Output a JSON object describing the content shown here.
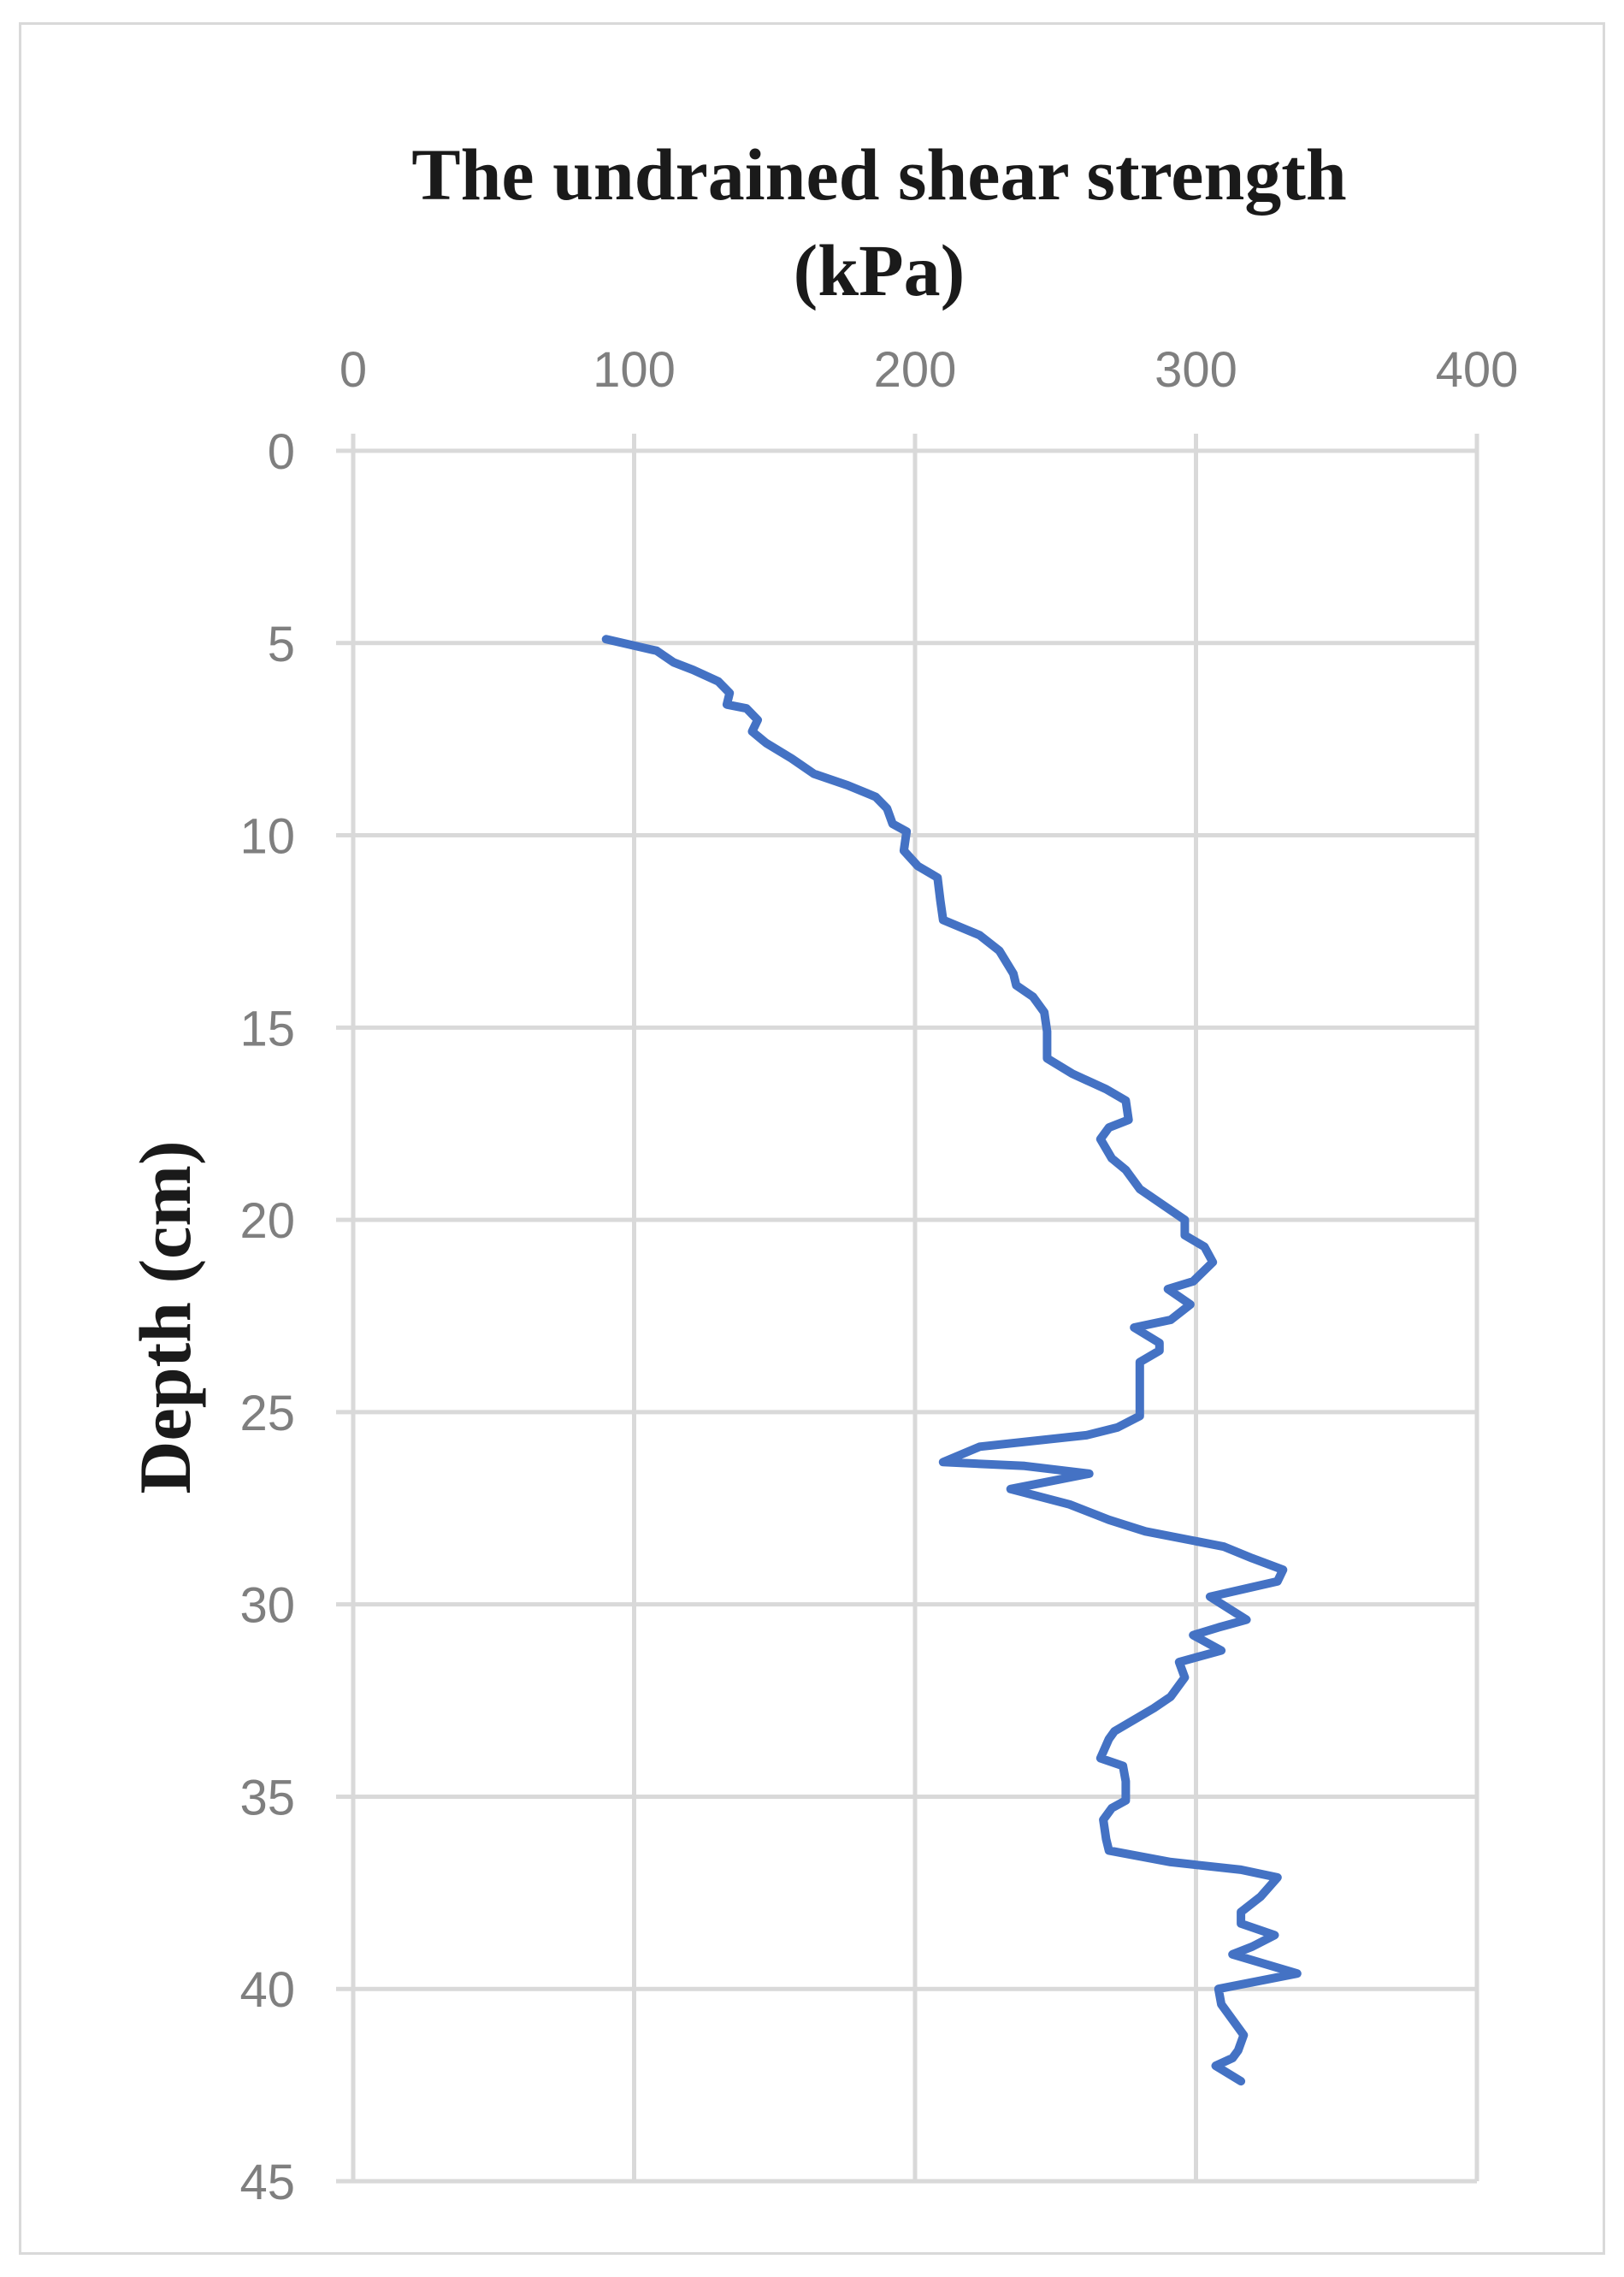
{
  "chart_data": {
    "type": "line",
    "title": "The undrained shear strength (kPa)",
    "title_lines": [
      "The undrained shear strength",
      "(kPa)"
    ],
    "xlabel": "",
    "ylabel": "Depth (cm)",
    "x_axis_position": "top",
    "y_axis_inverted": true,
    "xlim": [
      0,
      400
    ],
    "ylim": [
      0,
      45
    ],
    "x_ticks": [
      "0",
      "100",
      "200",
      "300",
      "400"
    ],
    "y_ticks": [
      "0",
      "5",
      "10",
      "15",
      "20",
      "25",
      "30",
      "35",
      "40",
      "45"
    ],
    "grid": true,
    "legend": "none",
    "colors": {
      "series": "#4472c4",
      "grid": "#d9d9d9",
      "tick_label": "#7f7f7f",
      "title": "#1a1a1a"
    },
    "series": [
      {
        "points": [
          [
            90,
            4.9
          ],
          [
            108,
            5.2
          ],
          [
            114,
            5.5
          ],
          [
            121,
            5.7
          ],
          [
            130,
            6.0
          ],
          [
            134,
            6.3
          ],
          [
            133,
            6.6
          ],
          [
            140,
            6.7
          ],
          [
            144,
            7.0
          ],
          [
            142,
            7.3
          ],
          [
            147,
            7.6
          ],
          [
            156,
            8.0
          ],
          [
            164,
            8.4
          ],
          [
            176,
            8.7
          ],
          [
            186,
            9.0
          ],
          [
            190,
            9.3
          ],
          [
            192,
            9.7
          ],
          [
            197,
            9.9
          ],
          [
            196,
            10.4
          ],
          [
            201,
            10.8
          ],
          [
            208,
            11.1
          ],
          [
            209,
            11.7
          ],
          [
            210,
            12.2
          ],
          [
            223,
            12.6
          ],
          [
            230,
            13.0
          ],
          [
            235,
            13.6
          ],
          [
            236,
            13.9
          ],
          [
            242,
            14.2
          ],
          [
            246,
            14.6
          ],
          [
            247,
            15.1
          ],
          [
            247,
            15.8
          ],
          [
            256,
            16.2
          ],
          [
            268,
            16.6
          ],
          [
            275,
            16.9
          ],
          [
            276,
            17.4
          ],
          [
            269,
            17.6
          ],
          [
            266,
            17.9
          ],
          [
            270,
            18.4
          ],
          [
            275,
            18.7
          ],
          [
            280,
            19.2
          ],
          [
            288,
            19.6
          ],
          [
            296,
            20.0
          ],
          [
            296,
            20.4
          ],
          [
            303,
            20.7
          ],
          [
            306,
            21.1
          ],
          [
            299,
            21.6
          ],
          [
            290,
            21.8
          ],
          [
            298,
            22.2
          ],
          [
            291,
            22.6
          ],
          [
            278,
            22.8
          ],
          [
            287,
            23.2
          ],
          [
            287,
            23.4
          ],
          [
            280,
            23.7
          ],
          [
            280,
            24.3
          ],
          [
            280,
            24.6
          ],
          [
            280,
            25.0
          ],
          [
            280,
            25.1
          ],
          [
            272,
            25.4
          ],
          [
            261,
            25.6
          ],
          [
            223,
            25.9
          ],
          [
            210,
            26.3
          ],
          [
            239,
            26.4
          ],
          [
            262,
            26.6
          ],
          [
            234,
            27.0
          ],
          [
            255,
            27.4
          ],
          [
            269,
            27.8
          ],
          [
            282,
            28.1
          ],
          [
            310,
            28.5
          ],
          [
            320,
            28.8
          ],
          [
            331,
            29.1
          ],
          [
            329,
            29.4
          ],
          [
            305,
            29.8
          ],
          [
            318,
            30.4
          ],
          [
            308,
            30.6
          ],
          [
            299,
            30.8
          ],
          [
            309,
            31.2
          ],
          [
            294,
            31.5
          ],
          [
            296,
            31.9
          ],
          [
            291,
            32.4
          ],
          [
            285,
            32.7
          ],
          [
            278,
            33.0
          ],
          [
            271,
            33.3
          ],
          [
            269,
            33.5
          ],
          [
            266,
            34.0
          ],
          [
            274,
            34.2
          ],
          [
            275,
            34.6
          ],
          [
            275,
            35.1
          ],
          [
            270,
            35.3
          ],
          [
            267,
            35.6
          ],
          [
            268,
            36.1
          ],
          [
            269,
            36.4
          ],
          [
            291,
            36.7
          ],
          [
            316,
            36.9
          ],
          [
            329,
            37.1
          ],
          [
            323,
            37.6
          ],
          [
            316,
            38.0
          ],
          [
            316,
            38.3
          ],
          [
            328,
            38.6
          ],
          [
            320,
            38.9
          ],
          [
            313,
            39.1
          ],
          [
            336,
            39.6
          ],
          [
            308,
            40.0
          ],
          [
            309,
            40.4
          ],
          [
            313,
            40.8
          ],
          [
            317,
            41.2
          ],
          [
            315,
            41.6
          ],
          [
            313,
            41.8
          ],
          [
            307,
            42.0
          ],
          [
            316,
            42.4
          ]
        ]
      }
    ]
  }
}
